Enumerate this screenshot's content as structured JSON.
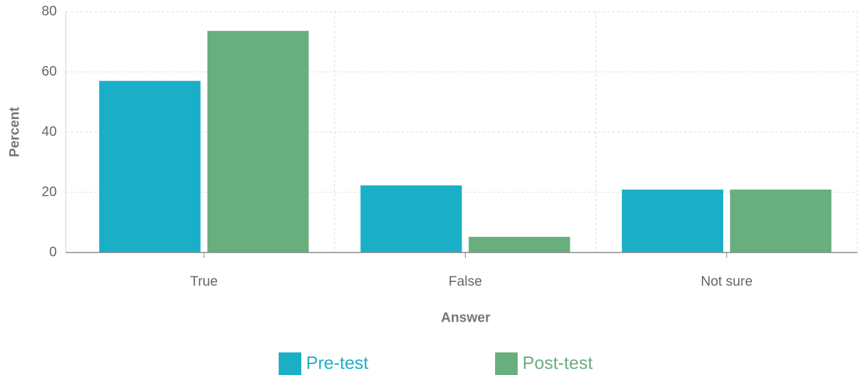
{
  "chart_data": {
    "type": "bar",
    "x_label": "Answer",
    "y_label": "Percent",
    "categories": [
      "True",
      "False",
      "Not sure"
    ],
    "series": [
      {
        "name": "Pre-test",
        "color": "#1bafc7",
        "values": [
          57.0,
          22.3,
          20.9
        ]
      },
      {
        "name": "Post-test",
        "color": "#69ae7f",
        "values": [
          73.6,
          5.2,
          20.9
        ]
      }
    ],
    "ylim": [
      0,
      80
    ],
    "yticks": [
      0,
      20,
      40,
      60,
      80
    ],
    "grid": true,
    "legend": "bottom"
  }
}
